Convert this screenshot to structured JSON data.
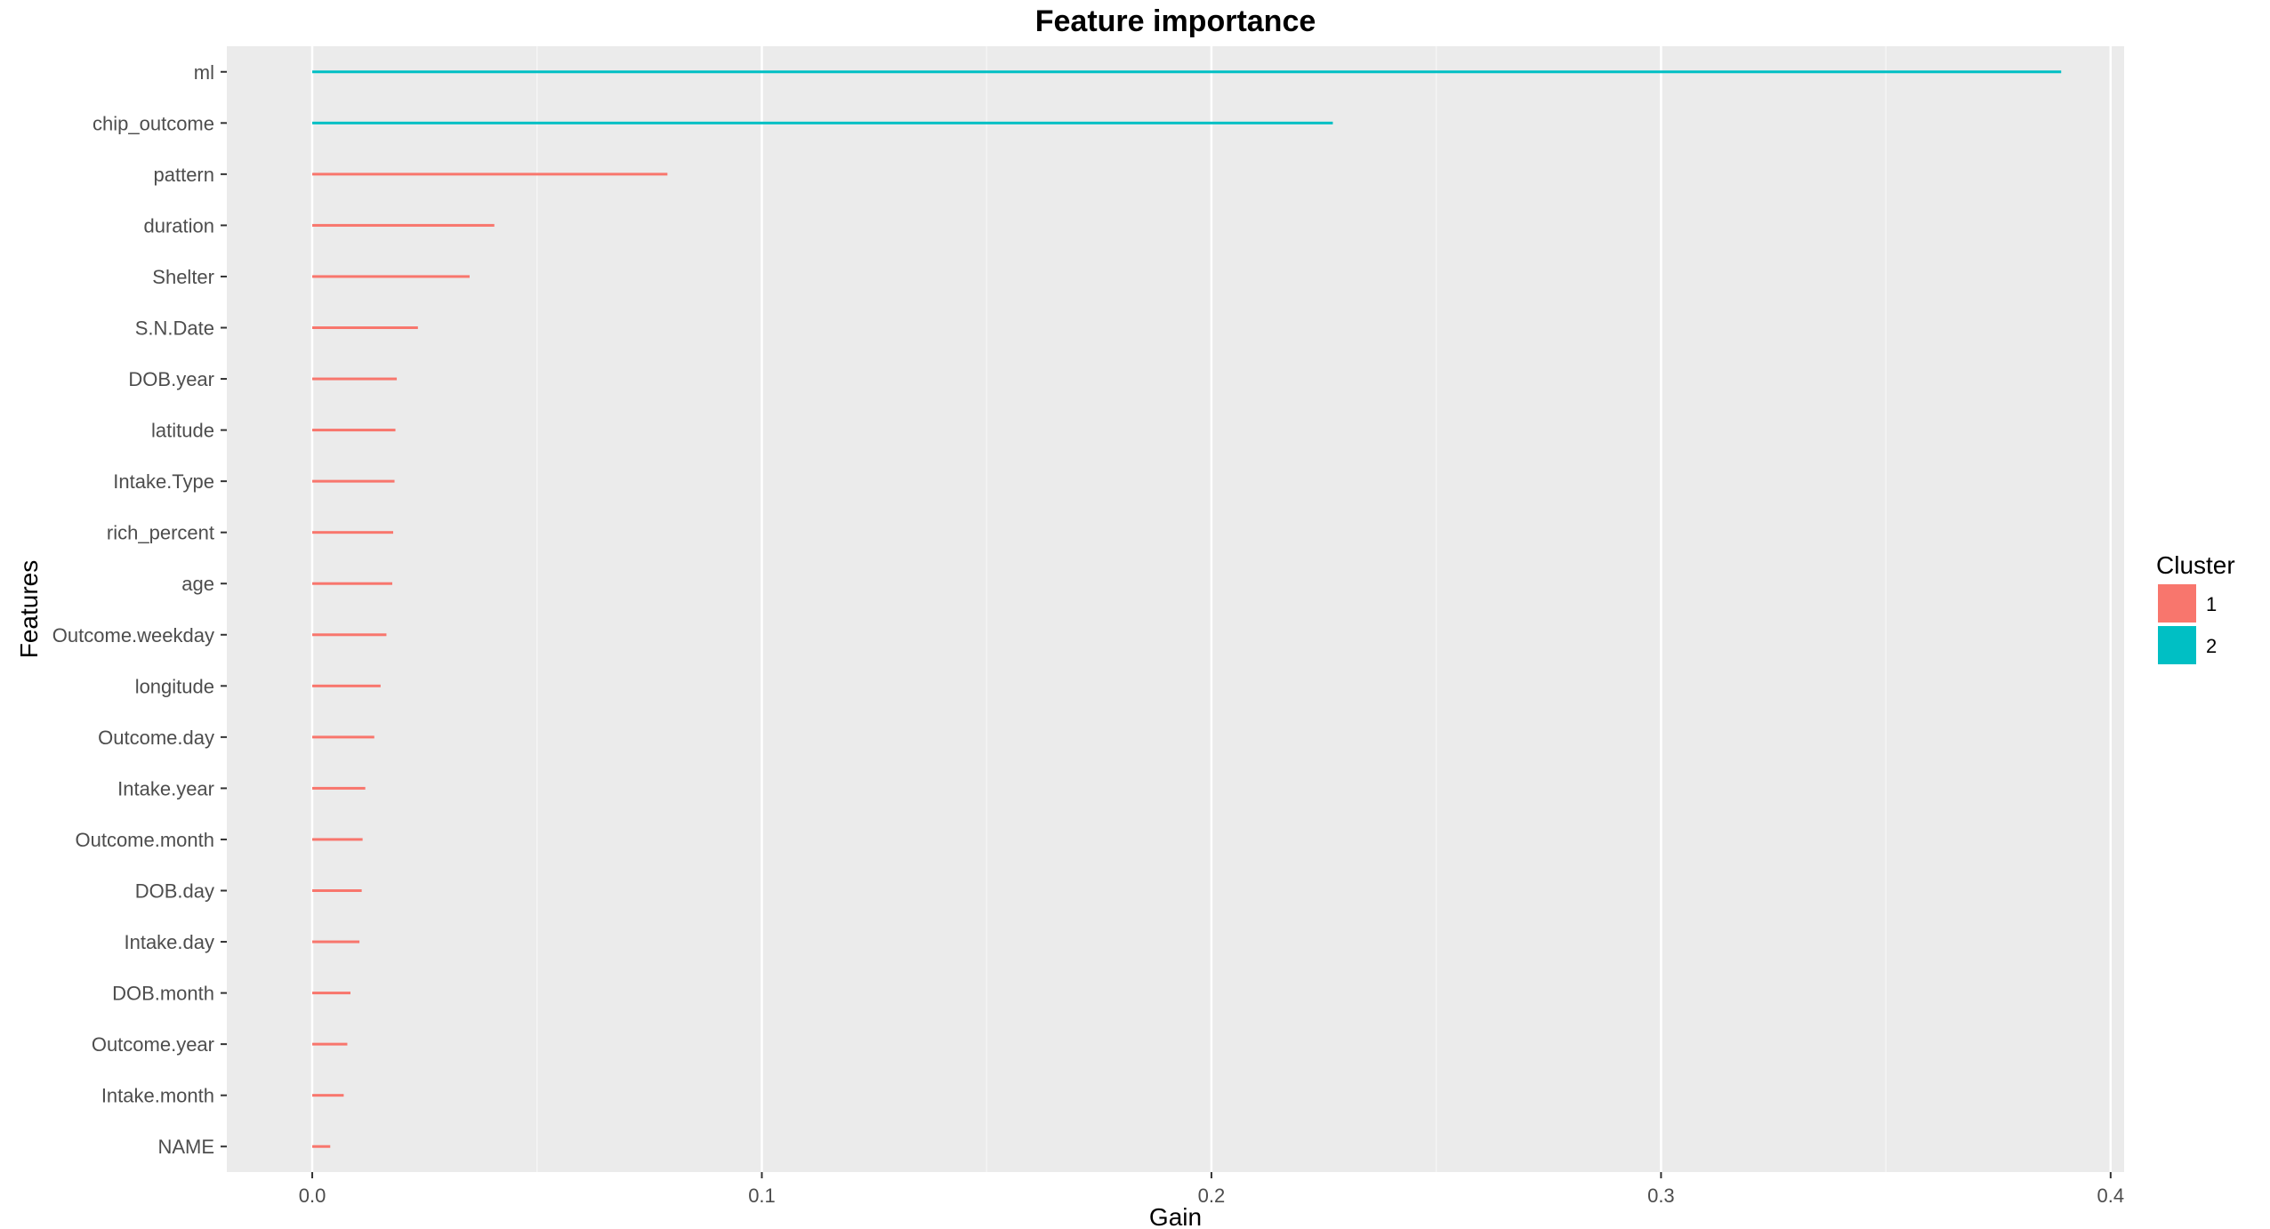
{
  "chart_data": {
    "type": "bar",
    "orientation": "horizontal",
    "title": "Feature importance",
    "xlabel": "Gain",
    "ylabel": "Features",
    "xlim": [
      -0.019,
      0.403
    ],
    "x_ticks": [
      "0.0",
      "0.1",
      "0.2",
      "0.3",
      "0.4"
    ],
    "x_tick_values": [
      0,
      0.1,
      0.2,
      0.3,
      0.4
    ],
    "grid": true,
    "legend": {
      "title": "Cluster",
      "position": "right",
      "entries": [
        {
          "label": "1",
          "color": "#F8766D"
        },
        {
          "label": "2",
          "color": "#00BFC4"
        }
      ]
    },
    "categories": [
      "ml",
      "chip_outcome",
      "pattern",
      "duration",
      "Shelter",
      "S.N.Date",
      "DOB.year",
      "latitude",
      "Intake.Type",
      "rich_percent",
      "age",
      "Outcome.weekday",
      "longitude",
      "Outcome.day",
      "Intake.year",
      "Outcome.month",
      "DOB.day",
      "Intake.day",
      "DOB.month",
      "Outcome.year",
      "Intake.month",
      "NAME"
    ],
    "values": [
      0.389,
      0.227,
      0.079,
      0.0405,
      0.035,
      0.0235,
      0.0188,
      0.0185,
      0.0183,
      0.018,
      0.0178,
      0.0165,
      0.0152,
      0.0138,
      0.0118,
      0.0112,
      0.011,
      0.0105,
      0.0085,
      0.0078,
      0.007,
      0.004
    ],
    "cluster": [
      "2",
      "2",
      "1",
      "1",
      "1",
      "1",
      "1",
      "1",
      "1",
      "1",
      "1",
      "1",
      "1",
      "1",
      "1",
      "1",
      "1",
      "1",
      "1",
      "1",
      "1",
      "1"
    ]
  },
  "colors": {
    "panel_background": "#EBEBEB",
    "grid_major": "#FFFFFF",
    "grid_minor": "#F5F5F5",
    "cluster_1": "#F8766D",
    "cluster_2": "#00BFC4"
  }
}
